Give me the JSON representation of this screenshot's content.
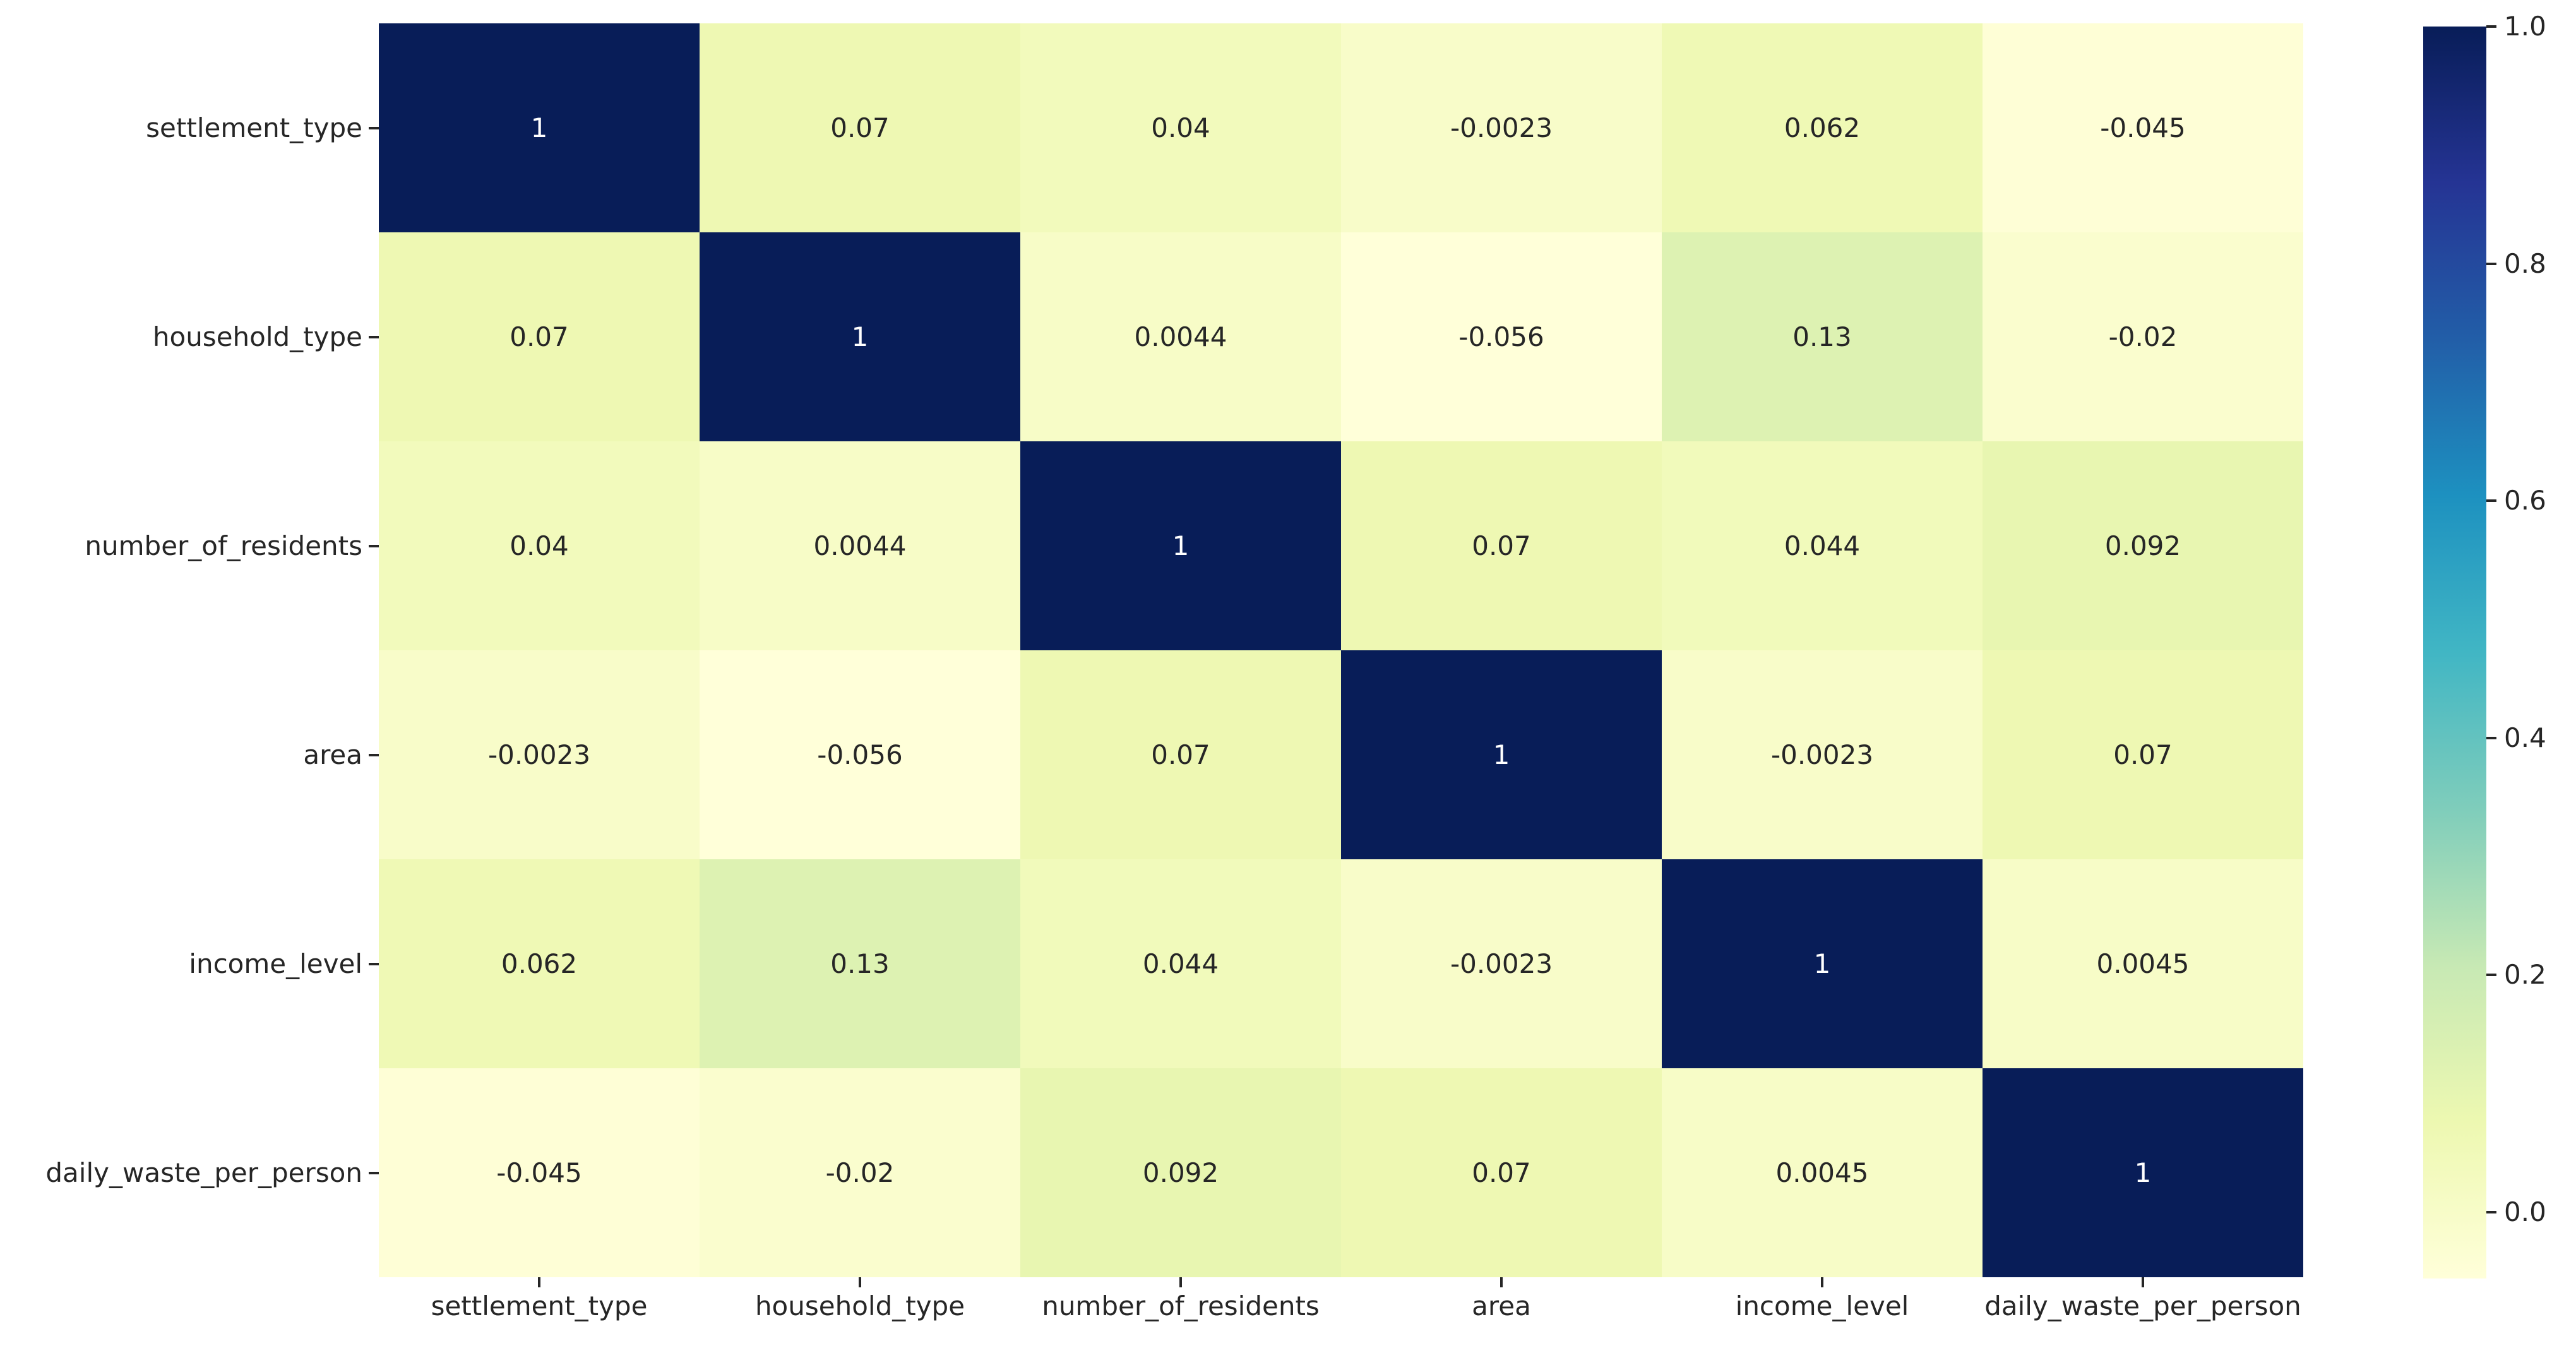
{
  "figure": {
    "background_color": "#ffffff",
    "tick_color": "#262626",
    "annotation_dark_text_color": "#262626",
    "annotation_light_text_color": "#ffffff"
  },
  "chart_data": {
    "type": "heatmap",
    "title": "",
    "xlabel": "",
    "ylabel": "",
    "grid": false,
    "legend_position": "right-colorbar",
    "variables": [
      "settlement_type",
      "household_type",
      "number_of_residents",
      "area",
      "income_level",
      "daily_waste_per_person"
    ],
    "matrix": [
      [
        1,
        0.07,
        0.04,
        -0.0023,
        0.062,
        -0.045
      ],
      [
        0.07,
        1,
        0.0044,
        -0.056,
        0.13,
        -0.02
      ],
      [
        0.04,
        0.0044,
        1,
        0.07,
        0.044,
        0.092
      ],
      [
        -0.0023,
        -0.056,
        0.07,
        1,
        -0.0023,
        0.07
      ],
      [
        0.062,
        0.13,
        0.044,
        -0.0023,
        1,
        0.0045
      ],
      [
        -0.045,
        -0.02,
        0.092,
        0.07,
        0.0045,
        1
      ]
    ],
    "cell_labels": [
      [
        "1",
        "0.07",
        "0.04",
        "-0.0023",
        "0.062",
        "-0.045"
      ],
      [
        "0.07",
        "1",
        "0.0044",
        "-0.056",
        "0.13",
        "-0.02"
      ],
      [
        "0.04",
        "0.0044",
        "1",
        "0.07",
        "0.044",
        "0.092"
      ],
      [
        "-0.0023",
        "-0.056",
        "0.07",
        "1",
        "-0.0023",
        "0.07"
      ],
      [
        "0.062",
        "0.13",
        "0.044",
        "-0.0023",
        "1",
        "0.0045"
      ],
      [
        "-0.045",
        "-0.02",
        "0.092",
        "0.07",
        "0.0045",
        "1"
      ]
    ],
    "vmin": -0.056,
    "vmax": 1.0,
    "colormap": {
      "name": "YlGnBu",
      "stops": [
        "#ffffd9",
        "#edf8b1",
        "#c7e9b4",
        "#7fcdbb",
        "#41b6c4",
        "#1d91c0",
        "#225ea8",
        "#253494",
        "#081d58"
      ]
    },
    "colorbar_ticks": [
      {
        "label": "1.0",
        "value": 1.0
      },
      {
        "label": "0.8",
        "value": 0.8
      },
      {
        "label": "0.6",
        "value": 0.6
      },
      {
        "label": "0.4",
        "value": 0.4
      },
      {
        "label": "0.2",
        "value": 0.2
      },
      {
        "label": "0.0",
        "value": 0.0
      }
    ]
  }
}
